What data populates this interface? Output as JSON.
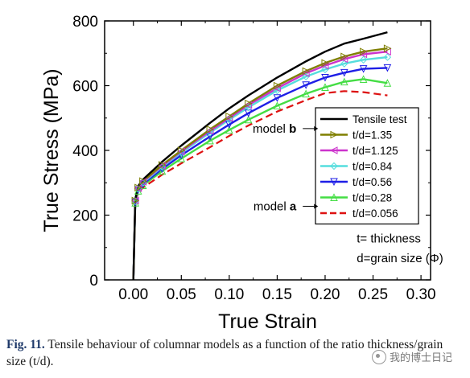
{
  "chart_data": {
    "type": "line",
    "xlabel": "True Strain",
    "ylabel": "True Stress (MPa)",
    "xlim": [
      -0.03,
      0.31
    ],
    "ylim": [
      0,
      800
    ],
    "xticks": [
      0.0,
      0.05,
      0.1,
      0.15,
      0.2,
      0.25,
      0.3
    ],
    "xtick_labels": [
      "0.00",
      "0.05",
      "0.10",
      "0.15",
      "0.20",
      "0.25",
      "0.30"
    ],
    "yticks": [
      0,
      200,
      400,
      600,
      800
    ],
    "ytick_labels": [
      "0",
      "200",
      "400",
      "600",
      "800"
    ],
    "grid": false,
    "legend_position": "right",
    "series": [
      {
        "name": "Tensile test",
        "color": "#000000",
        "marker": "none",
        "dash": "solid",
        "x": [
          0.0,
          0.002,
          0.005,
          0.01,
          0.03,
          0.05,
          0.08,
          0.1,
          0.12,
          0.15,
          0.18,
          0.2,
          0.22,
          0.24,
          0.265
        ],
        "y": [
          0,
          250,
          290,
          310,
          365,
          415,
          485,
          530,
          570,
          625,
          675,
          705,
          730,
          745,
          765
        ]
      },
      {
        "name": "t/d=1.35",
        "color": "#7f7f00",
        "marker": "triangle-right",
        "dash": "solid",
        "x": [
          0.0,
          0.002,
          0.005,
          0.01,
          0.03,
          0.05,
          0.08,
          0.1,
          0.12,
          0.15,
          0.18,
          0.2,
          0.22,
          0.24,
          0.265
        ],
        "y": [
          0,
          245,
          285,
          305,
          355,
          400,
          465,
          505,
          545,
          600,
          645,
          670,
          690,
          705,
          715
        ]
      },
      {
        "name": "t/d=1.125",
        "color": "#cc33cc",
        "marker": "triangle-left",
        "dash": "solid",
        "x": [
          0.0,
          0.002,
          0.005,
          0.01,
          0.03,
          0.05,
          0.08,
          0.1,
          0.12,
          0.15,
          0.18,
          0.2,
          0.22,
          0.24,
          0.265
        ],
        "y": [
          0,
          245,
          283,
          303,
          352,
          397,
          460,
          500,
          540,
          592,
          638,
          662,
          682,
          697,
          705
        ]
      },
      {
        "name": "t/d=0.84",
        "color": "#55dddd",
        "marker": "diamond",
        "dash": "solid",
        "x": [
          0.0,
          0.002,
          0.005,
          0.01,
          0.03,
          0.05,
          0.08,
          0.1,
          0.12,
          0.15,
          0.18,
          0.2,
          0.22,
          0.24,
          0.265
        ],
        "y": [
          0,
          243,
          281,
          300,
          349,
          393,
          455,
          495,
          533,
          585,
          628,
          650,
          668,
          680,
          688
        ]
      },
      {
        "name": "t/d=0.56",
        "color": "#1e1ee6",
        "marker": "triangle-down",
        "dash": "solid",
        "x": [
          0.0,
          0.002,
          0.005,
          0.01,
          0.03,
          0.05,
          0.08,
          0.1,
          0.12,
          0.15,
          0.18,
          0.2,
          0.22,
          0.24,
          0.265
        ],
        "y": [
          0,
          240,
          278,
          296,
          343,
          385,
          443,
          480,
          515,
          562,
          602,
          625,
          640,
          652,
          655
        ]
      },
      {
        "name": "t/d=0.28",
        "color": "#44dd44",
        "marker": "triangle-up",
        "dash": "solid",
        "x": [
          0.0,
          0.002,
          0.005,
          0.01,
          0.03,
          0.05,
          0.08,
          0.1,
          0.12,
          0.15,
          0.18,
          0.2,
          0.22,
          0.24,
          0.265
        ],
        "y": [
          0,
          238,
          275,
          292,
          336,
          375,
          430,
          463,
          495,
          538,
          575,
          595,
          612,
          620,
          608
        ]
      },
      {
        "name": "t/d=0.056",
        "color": "#dd1111",
        "marker": "none",
        "dash": "dashed",
        "x": [
          0.0,
          0.002,
          0.005,
          0.01,
          0.03,
          0.05,
          0.08,
          0.1,
          0.12,
          0.15,
          0.18,
          0.2,
          0.22,
          0.24,
          0.265
        ],
        "y": [
          0,
          235,
          270,
          285,
          325,
          360,
          410,
          445,
          477,
          520,
          555,
          577,
          583,
          580,
          570
        ]
      }
    ],
    "annotations": [
      {
        "text_pre": "model ",
        "text_bold": "b",
        "x": 0.17,
        "y": 455
      },
      {
        "text_pre": "model ",
        "text_bold": "a",
        "x": 0.17,
        "y": 215
      },
      {
        "text": "t= thickness",
        "x": 0.233,
        "y": 115
      },
      {
        "text": "d=grain size (Φ)",
        "x": 0.233,
        "y": 55
      }
    ]
  },
  "caption": {
    "label": "Fig. 11.",
    "text": " Tensile behaviour of columnar models as a function of the ratio thickness/grain size (t/d)."
  },
  "watermark": "我的博士日记"
}
